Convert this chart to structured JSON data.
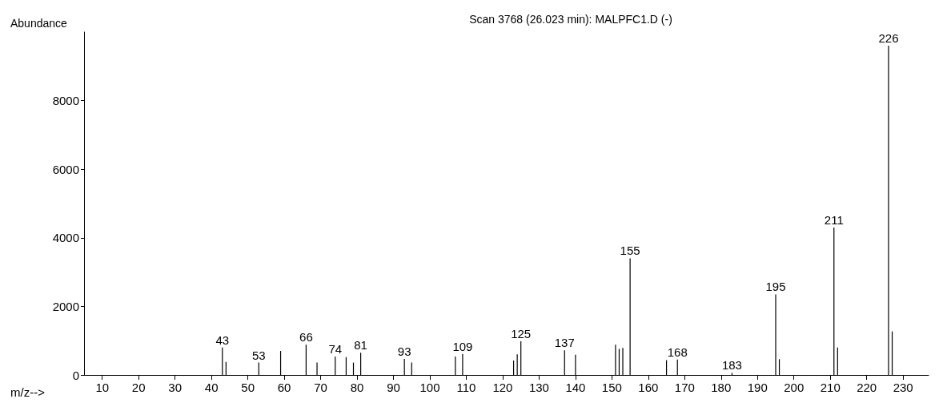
{
  "chart_data": {
    "type": "bar",
    "title": "Scan 3768 (26.023 min): MALPFC1.D (-)",
    "xlabel": "m/z-->",
    "ylabel": "Abundance",
    "x": [
      43,
      44,
      53,
      59,
      66,
      69,
      74,
      77,
      79,
      81,
      93,
      95,
      107,
      109,
      123,
      124,
      125,
      137,
      140,
      151,
      152,
      153,
      155,
      165,
      168,
      183,
      195,
      196,
      211,
      212,
      226,
      227
    ],
    "values": [
      800,
      380,
      360,
      700,
      880,
      360,
      540,
      520,
      360,
      650,
      470,
      360,
      540,
      610,
      420,
      600,
      980,
      720,
      590,
      880,
      760,
      790,
      3400,
      430,
      450,
      60,
      2350,
      460,
      4300,
      800,
      9600,
      1270
    ],
    "color": "#000000",
    "xlim": [
      5,
      237
    ],
    "xticks": [
      10,
      20,
      30,
      40,
      50,
      60,
      70,
      80,
      90,
      100,
      110,
      120,
      130,
      140,
      150,
      160,
      170,
      180,
      190,
      200,
      210,
      220,
      230
    ],
    "ylim": [
      0,
      10000
    ],
    "yticks": [
      0,
      2000,
      4000,
      6000,
      8000
    ],
    "grid": false,
    "annotations": [
      {
        "text": "43",
        "x": 43,
        "y": 800
      },
      {
        "text": "53",
        "x": 53,
        "y": 360
      },
      {
        "text": "66",
        "x": 66,
        "y": 880
      },
      {
        "text": "74",
        "x": 74,
        "y": 540
      },
      {
        "text": "81",
        "x": 81,
        "y": 650
      },
      {
        "text": "93",
        "x": 93,
        "y": 470
      },
      {
        "text": "109",
        "x": 109,
        "y": 610
      },
      {
        "text": "125",
        "x": 125,
        "y": 980
      },
      {
        "text": "137",
        "x": 137,
        "y": 720
      },
      {
        "text": "155",
        "x": 155,
        "y": 3400
      },
      {
        "text": "168",
        "x": 168,
        "y": 450
      },
      {
        "text": "183",
        "x": 183,
        "y": 60
      },
      {
        "text": "195",
        "x": 195,
        "y": 2350
      },
      {
        "text": "211",
        "x": 211,
        "y": 4300
      },
      {
        "text": "226",
        "x": 226,
        "y": 9600
      }
    ]
  }
}
